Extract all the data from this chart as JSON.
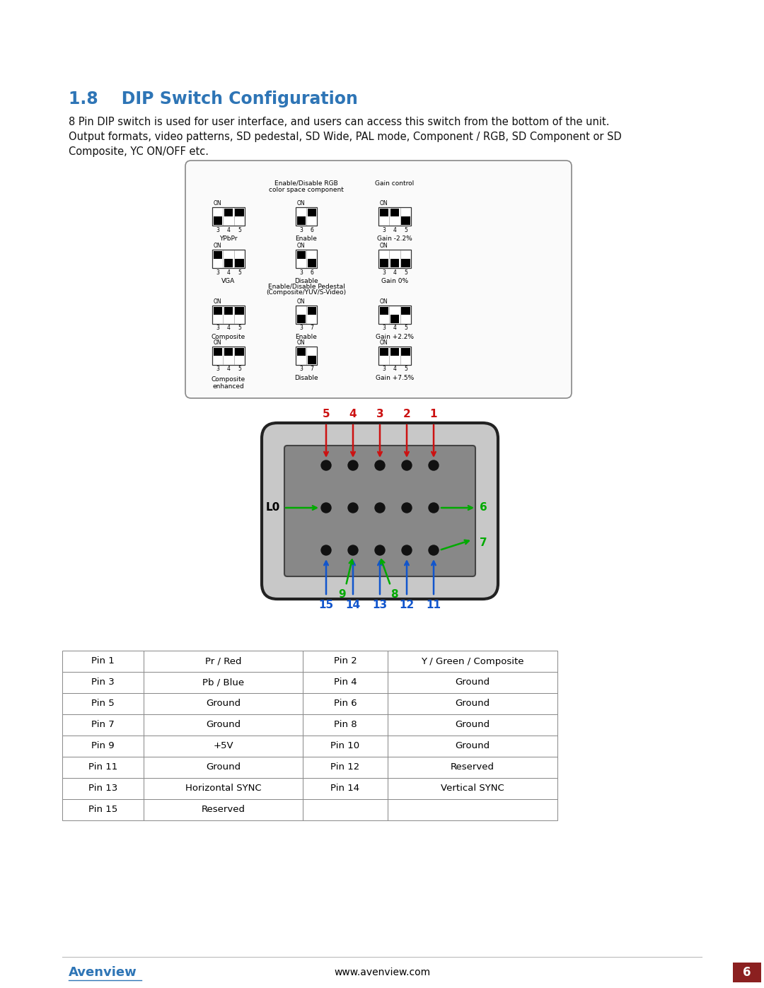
{
  "title": "1.8    DIP Switch Configuration",
  "title_color": "#2E75B6",
  "body_text_line1": "8 Pin DIP switch is used for user interface, and users can access this switch from the bottom of the unit.",
  "body_text_line2": "Output formats, video patterns, SD pedestal, SD Wide, PAL mode, Component / RGB, SD Component or SD",
  "body_text_line3": "Composite, YC ON/OFF etc.",
  "dip_rgb_header1": "Enable/Disable RGB",
  "dip_rgb_header2": "color space component",
  "dip_gain_header": "Gain control",
  "dip_pedestal_header1": "Enable/Disable Pedestal",
  "dip_pedestal_header2": "(Composite/YUV/S-Video)",
  "row1_left_label": "YPbPr",
  "row1_mid_label": "Enable",
  "row1_right_label": "Gain -2.2%",
  "row2_left_label": "VGA",
  "row2_mid_label": "Disable",
  "row2_right_label": "Gain 0%",
  "row3_left_label": "Composite",
  "row3_mid_label": "Enable",
  "row3_right_label": "Gain +2.2%",
  "row4_left_label": "Composite\nenhanced",
  "row4_mid_label": "Disable",
  "row4_right_label": "Gain +7.5%",
  "conn_top_labels": [
    "5",
    "4",
    "3",
    "2",
    "1"
  ],
  "conn_mid_left": "L0",
  "conn_mid_right": "6",
  "conn_right7": "7",
  "conn_inner_labels": [
    "9",
    "8"
  ],
  "conn_bot_labels": [
    "15",
    "14",
    "13",
    "12",
    "11"
  ],
  "table_rows": [
    [
      "Pin 1",
      "Pr / Red",
      "Pin 2",
      "Y / Green / Composite"
    ],
    [
      "Pin 3",
      "Pb / Blue",
      "Pin 4",
      "Ground"
    ],
    [
      "Pin 5",
      "Ground",
      "Pin 6",
      "Ground"
    ],
    [
      "Pin 7",
      "Ground",
      "Pin 8",
      "Ground"
    ],
    [
      "Pin 9",
      "+5V",
      "Pin 10",
      "Ground"
    ],
    [
      "Pin 11",
      "Ground",
      "Pin 12",
      "Reserved"
    ],
    [
      "Pin 13",
      "Horizontal SYNC",
      "Pin 14",
      "Vertical SYNC"
    ],
    [
      "Pin 15",
      "Reserved",
      "",
      ""
    ]
  ],
  "footer_text": "www.avenview.com",
  "footer_page": "6",
  "footer_brand": "Avenview",
  "footer_brand_color": "#2E75B6",
  "footer_page_bg": "#8B2020",
  "background_color": "#FFFFFF",
  "red_color": "#CC1111",
  "green_color": "#00AA00",
  "blue_color": "#1155CC"
}
